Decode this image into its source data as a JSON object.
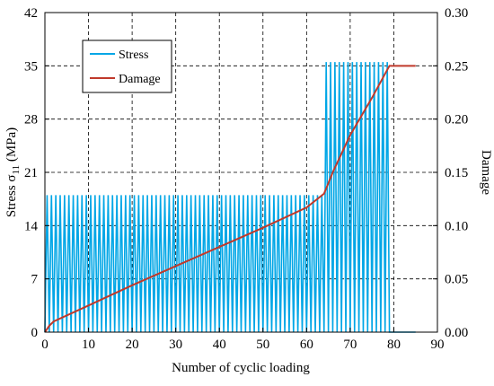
{
  "chart_data": {
    "type": "line",
    "title": "",
    "xlabel": "Number of cyclic loading",
    "ylabel_left_main": "Stress σ",
    "ylabel_left_sub": "11",
    "ylabel_left_unit": " (MPa)",
    "ylabel_right": "Damage",
    "xlim": [
      0,
      90
    ],
    "ylim_left": [
      0,
      42
    ],
    "ylim_right": [
      0,
      0.3
    ],
    "x_ticks": [
      "0",
      "10",
      "20",
      "30",
      "40",
      "50",
      "60",
      "70",
      "80",
      "90"
    ],
    "y_left_ticks": [
      "0",
      "7",
      "14",
      "21",
      "28",
      "35",
      "42"
    ],
    "y_right_ticks": [
      "0.00",
      "0.05",
      "0.10",
      "0.15",
      "0.20",
      "0.25",
      "0.30"
    ],
    "grid": true,
    "legend_position": "top-left",
    "legend": [
      {
        "label": "Stress",
        "color": "#00a6e6"
      },
      {
        "label": "Damage",
        "color": "#c0392b"
      }
    ],
    "series": [
      {
        "name": "Stress",
        "axis": "left",
        "color": "#00a6e6",
        "cycle_period": 1.0,
        "segments": [
          {
            "x_start": 0,
            "x_end": 64,
            "min": 0,
            "max": 18
          },
          {
            "x_start": 64,
            "x_end": 79,
            "min": 0,
            "max": 35.5
          }
        ],
        "tail": {
          "x_start": 79,
          "x_end": 85,
          "value": 0
        }
      },
      {
        "name": "Damage",
        "axis": "right",
        "color": "#c0392b",
        "x": [
          0,
          1,
          2,
          10,
          20,
          30,
          40,
          50,
          60,
          64,
          66,
          70,
          75,
          79,
          85
        ],
        "y": [
          0.0,
          0.006,
          0.01,
          0.025,
          0.044,
          0.062,
          0.08,
          0.098,
          0.117,
          0.13,
          0.15,
          0.185,
          0.22,
          0.25,
          0.25
        ]
      }
    ]
  }
}
